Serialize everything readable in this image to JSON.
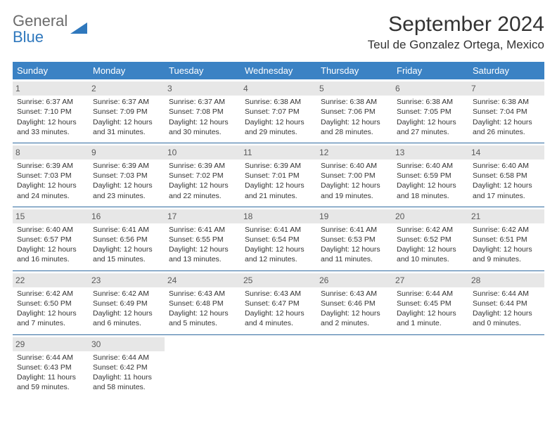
{
  "brand": {
    "name_part1": "General",
    "name_part2": "Blue"
  },
  "header": {
    "month_title": "September 2024",
    "location": "Teul de Gonzalez Ortega, Mexico"
  },
  "colors": {
    "header_bg": "#3b82c4",
    "header_text": "#ffffff",
    "daynum_bg": "#e7e7e7",
    "row_border": "#2f6aa0",
    "brand_gray": "#6b6b6b",
    "brand_blue": "#2f78bd"
  },
  "calendar": {
    "day_headers": [
      "Sunday",
      "Monday",
      "Tuesday",
      "Wednesday",
      "Thursday",
      "Friday",
      "Saturday"
    ],
    "weeks": [
      [
        {
          "n": "1",
          "sr": "6:37 AM",
          "ss": "7:10 PM",
          "dl": "12 hours and 33 minutes."
        },
        {
          "n": "2",
          "sr": "6:37 AM",
          "ss": "7:09 PM",
          "dl": "12 hours and 31 minutes."
        },
        {
          "n": "3",
          "sr": "6:37 AM",
          "ss": "7:08 PM",
          "dl": "12 hours and 30 minutes."
        },
        {
          "n": "4",
          "sr": "6:38 AM",
          "ss": "7:07 PM",
          "dl": "12 hours and 29 minutes."
        },
        {
          "n": "5",
          "sr": "6:38 AM",
          "ss": "7:06 PM",
          "dl": "12 hours and 28 minutes."
        },
        {
          "n": "6",
          "sr": "6:38 AM",
          "ss": "7:05 PM",
          "dl": "12 hours and 27 minutes."
        },
        {
          "n": "7",
          "sr": "6:38 AM",
          "ss": "7:04 PM",
          "dl": "12 hours and 26 minutes."
        }
      ],
      [
        {
          "n": "8",
          "sr": "6:39 AM",
          "ss": "7:03 PM",
          "dl": "12 hours and 24 minutes."
        },
        {
          "n": "9",
          "sr": "6:39 AM",
          "ss": "7:03 PM",
          "dl": "12 hours and 23 minutes."
        },
        {
          "n": "10",
          "sr": "6:39 AM",
          "ss": "7:02 PM",
          "dl": "12 hours and 22 minutes."
        },
        {
          "n": "11",
          "sr": "6:39 AM",
          "ss": "7:01 PM",
          "dl": "12 hours and 21 minutes."
        },
        {
          "n": "12",
          "sr": "6:40 AM",
          "ss": "7:00 PM",
          "dl": "12 hours and 19 minutes."
        },
        {
          "n": "13",
          "sr": "6:40 AM",
          "ss": "6:59 PM",
          "dl": "12 hours and 18 minutes."
        },
        {
          "n": "14",
          "sr": "6:40 AM",
          "ss": "6:58 PM",
          "dl": "12 hours and 17 minutes."
        }
      ],
      [
        {
          "n": "15",
          "sr": "6:40 AM",
          "ss": "6:57 PM",
          "dl": "12 hours and 16 minutes."
        },
        {
          "n": "16",
          "sr": "6:41 AM",
          "ss": "6:56 PM",
          "dl": "12 hours and 15 minutes."
        },
        {
          "n": "17",
          "sr": "6:41 AM",
          "ss": "6:55 PM",
          "dl": "12 hours and 13 minutes."
        },
        {
          "n": "18",
          "sr": "6:41 AM",
          "ss": "6:54 PM",
          "dl": "12 hours and 12 minutes."
        },
        {
          "n": "19",
          "sr": "6:41 AM",
          "ss": "6:53 PM",
          "dl": "12 hours and 11 minutes."
        },
        {
          "n": "20",
          "sr": "6:42 AM",
          "ss": "6:52 PM",
          "dl": "12 hours and 10 minutes."
        },
        {
          "n": "21",
          "sr": "6:42 AM",
          "ss": "6:51 PM",
          "dl": "12 hours and 9 minutes."
        }
      ],
      [
        {
          "n": "22",
          "sr": "6:42 AM",
          "ss": "6:50 PM",
          "dl": "12 hours and 7 minutes."
        },
        {
          "n": "23",
          "sr": "6:42 AM",
          "ss": "6:49 PM",
          "dl": "12 hours and 6 minutes."
        },
        {
          "n": "24",
          "sr": "6:43 AM",
          "ss": "6:48 PM",
          "dl": "12 hours and 5 minutes."
        },
        {
          "n": "25",
          "sr": "6:43 AM",
          "ss": "6:47 PM",
          "dl": "12 hours and 4 minutes."
        },
        {
          "n": "26",
          "sr": "6:43 AM",
          "ss": "6:46 PM",
          "dl": "12 hours and 2 minutes."
        },
        {
          "n": "27",
          "sr": "6:44 AM",
          "ss": "6:45 PM",
          "dl": "12 hours and 1 minute."
        },
        {
          "n": "28",
          "sr": "6:44 AM",
          "ss": "6:44 PM",
          "dl": "12 hours and 0 minutes."
        }
      ],
      [
        {
          "n": "29",
          "sr": "6:44 AM",
          "ss": "6:43 PM",
          "dl": "11 hours and 59 minutes."
        },
        {
          "n": "30",
          "sr": "6:44 AM",
          "ss": "6:42 PM",
          "dl": "11 hours and 58 minutes."
        },
        null,
        null,
        null,
        null,
        null
      ]
    ],
    "labels": {
      "sunrise": "Sunrise:",
      "sunset": "Sunset:",
      "daylight": "Daylight:"
    }
  }
}
